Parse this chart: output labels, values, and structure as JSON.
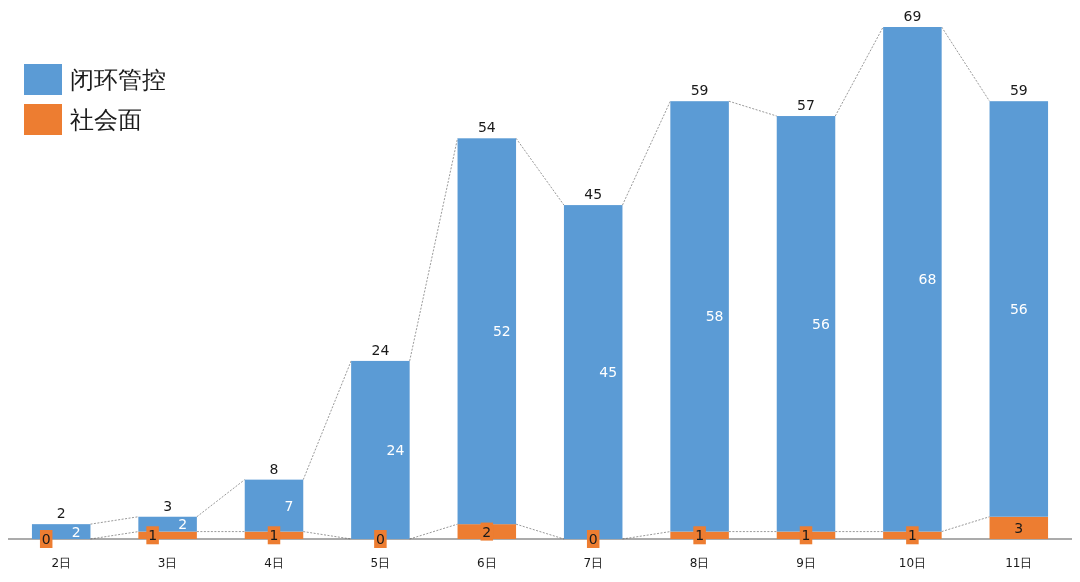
{
  "chart_data": {
    "type": "bar",
    "stacked": true,
    "categories": [
      "2日",
      "3日",
      "4日",
      "5日",
      "6日",
      "7日",
      "8日",
      "9日",
      "10日",
      "11日"
    ],
    "series": [
      {
        "name": "社会面",
        "color": "#ed7d31",
        "values": [
          0,
          1,
          1,
          0,
          2,
          0,
          1,
          1,
          1,
          3
        ]
      },
      {
        "name": "闭环管控",
        "color": "#5b9bd5",
        "values": [
          2,
          2,
          7,
          24,
          52,
          45,
          58,
          56,
          68,
          56
        ]
      }
    ],
    "totals": [
      "2",
      "3",
      "8",
      "24",
      "54",
      "45",
      "59",
      "57",
      "69",
      "59"
    ],
    "data_labels": true,
    "legend": "top left"
  }
}
